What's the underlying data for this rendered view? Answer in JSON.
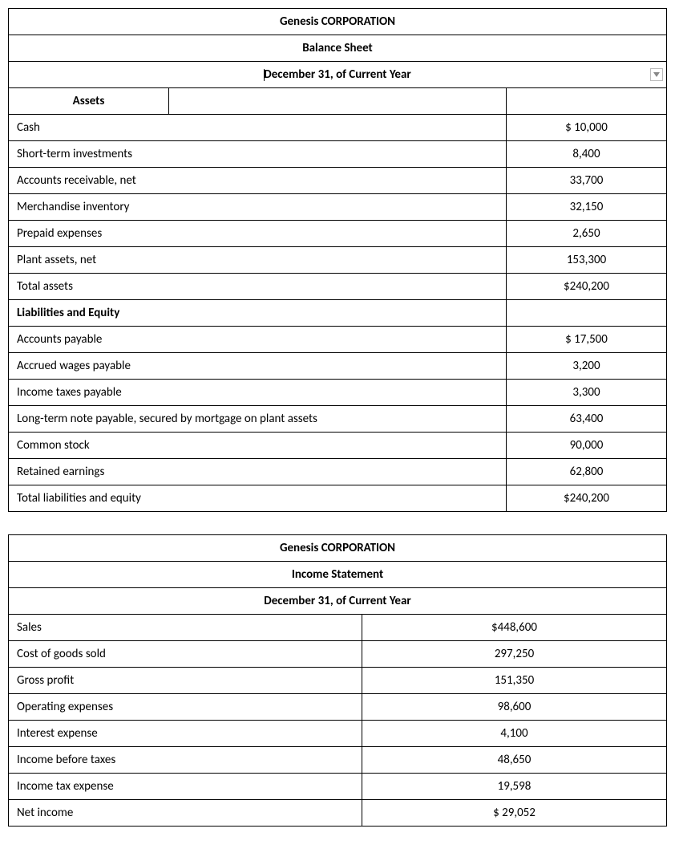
{
  "balance_sheet": {
    "company": "Genesis CORPORATION",
    "title": "Balance Sheet",
    "date": "December 31, of Current Year",
    "section_assets": "Assets",
    "section_liab": "Liabilities and Equity",
    "rows_assets": [
      {
        "label": "Cash",
        "value": "$ 10,000"
      },
      {
        "label": "Short-term investments",
        "value": "8,400"
      },
      {
        "label": "Accounts receivable, net",
        "value": "33,700"
      },
      {
        "label": "Merchandise inventory",
        "value": "32,150"
      },
      {
        "label": "Prepaid expenses",
        "value": "2,650"
      },
      {
        "label": "Plant assets, net",
        "value": "153,300"
      },
      {
        "label": "Total assets",
        "value": "$240,200"
      }
    ],
    "rows_liab": [
      {
        "label": "Accounts payable",
        "value": "$ 17,500"
      },
      {
        "label": "Accrued wages payable",
        "value": "3,200"
      },
      {
        "label": "Income taxes payable",
        "value": "3,300"
      },
      {
        "label": "Long-term note payable, secured by mortgage on plant assets",
        "value": "63,400"
      },
      {
        "label": "Common stock",
        "value": "90,000"
      },
      {
        "label": "Retained earnings",
        "value": "62,800"
      },
      {
        "label": "Total liabilities and equity",
        "value": "$240,200"
      }
    ]
  },
  "income_statement": {
    "company": "Genesis CORPORATION",
    "title": "Income Statement",
    "date": "December 31, of Current Year",
    "rows": [
      {
        "label": "Sales",
        "value": "$448,600"
      },
      {
        "label": "Cost of goods sold",
        "value": "297,250"
      },
      {
        "label": "Gross profit",
        "value": "151,350"
      },
      {
        "label": "Operating expenses",
        "value": "98,600"
      },
      {
        "label": "Interest expense",
        "value": "4,100"
      },
      {
        "label": "Income before taxes",
        "value": "48,650"
      },
      {
        "label": "Income tax expense",
        "value": "19,598"
      },
      {
        "label": "Net income",
        "value": "$ 29,052"
      }
    ]
  },
  "style": {
    "border_color": "#000000",
    "background_color": "#ffffff",
    "font_family": "Calibri",
    "base_fontsize": 15,
    "dropdown_border": "#bbbbbb",
    "dropdown_arrow": "#888888"
  }
}
